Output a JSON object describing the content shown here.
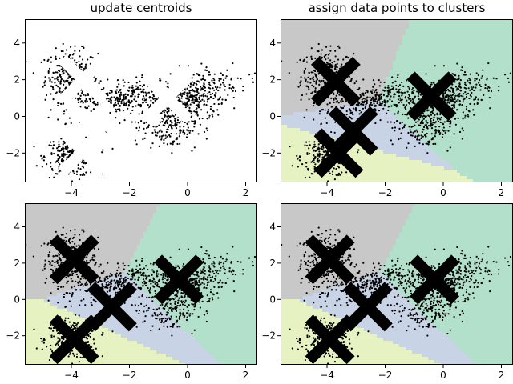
{
  "chart_data": [
    {
      "type": "scatter",
      "title": "update centroids",
      "xlim": [
        -5.6,
        2.4
      ],
      "ylim": [
        -3.6,
        5.3
      ],
      "xticks": [
        -4,
        -2,
        0,
        2
      ],
      "yticks": [
        -2,
        0,
        2,
        4
      ],
      "show_regions": false,
      "marker_color": "#ffffff",
      "centroids": [
        {
          "x": -3.6,
          "y": 2.0
        },
        {
          "x": -0.7,
          "y": 1.0
        },
        {
          "x": -3.4,
          "y": -0.4
        },
        {
          "x": -3.6,
          "y": -1.9
        }
      ]
    },
    {
      "type": "scatter",
      "title": "assign data points to clusters",
      "xlim": [
        -5.6,
        2.4
      ],
      "ylim": [
        -3.6,
        5.3
      ],
      "xticks": [
        -4,
        -2,
        0,
        2
      ],
      "yticks": [
        -2,
        0,
        2,
        4
      ],
      "show_regions": true,
      "marker_color": "#000000",
      "centroids": [
        {
          "x": -3.7,
          "y": 1.9
        },
        {
          "x": -0.4,
          "y": 1.1
        },
        {
          "x": -3.1,
          "y": -0.8
        },
        {
          "x": -3.6,
          "y": -2.0
        }
      ]
    },
    {
      "type": "scatter",
      "title": "",
      "xlim": [
        -5.6,
        2.4
      ],
      "ylim": [
        -3.6,
        5.3
      ],
      "xticks": [
        -4,
        -2,
        0,
        2
      ],
      "yticks": [
        -2,
        0,
        2,
        4
      ],
      "show_regions": true,
      "marker_color": "#000000",
      "centroids": [
        {
          "x": -3.9,
          "y": 2.2
        },
        {
          "x": -0.3,
          "y": 1.1
        },
        {
          "x": -2.6,
          "y": -0.4
        },
        {
          "x": -3.9,
          "y": -2.2
        }
      ]
    },
    {
      "type": "scatter",
      "title": "",
      "xlim": [
        -5.6,
        2.4
      ],
      "ylim": [
        -3.6,
        5.3
      ],
      "xticks": [
        -4,
        -2,
        0,
        2
      ],
      "yticks": [
        -2,
        0,
        2,
        4
      ],
      "show_regions": true,
      "marker_color": "#000000",
      "centroids": [
        {
          "x": -3.9,
          "y": 2.2
        },
        {
          "x": -0.3,
          "y": 1.1
        },
        {
          "x": -2.6,
          "y": -0.4
        },
        {
          "x": -3.9,
          "y": -2.2
        }
      ]
    }
  ],
  "clusters": [
    {
      "cx": -4.0,
      "cy": 2.2,
      "sx": 0.45,
      "sy": 0.7,
      "rot": 0,
      "n": 330
    },
    {
      "cx": -4.0,
      "cy": -2.2,
      "sx": 0.45,
      "sy": 0.55,
      "rot": 0,
      "n": 300
    },
    {
      "cx": -2.5,
      "cy": 0.9,
      "sx": 0.85,
      "sy": 0.4,
      "rot": 25,
      "n": 300
    },
    {
      "cx": 0.0,
      "cy": 1.0,
      "sx": 0.9,
      "sy": 0.55,
      "rot": 35,
      "n": 480
    },
    {
      "cx": -0.6,
      "cy": -0.6,
      "sx": 0.45,
      "sy": 0.6,
      "rot": 0,
      "n": 160
    }
  ],
  "region_colors": {
    "top_left": "#c8c8c8",
    "right": "#b2e0cb",
    "middle": "#c9d3e6",
    "bottom_left": "#e6f2c2"
  }
}
